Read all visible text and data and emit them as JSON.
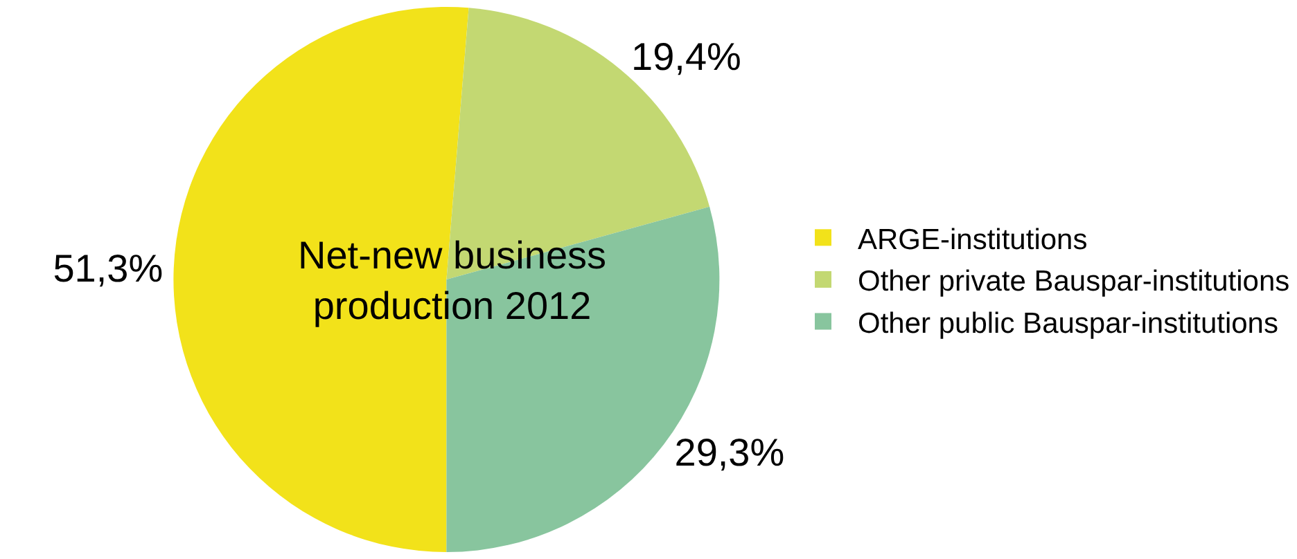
{
  "chart_data": {
    "type": "pie",
    "title": "Net-new business production 2012",
    "categories": [
      "ARGE-institutions",
      "Other private Bauspar-institutions",
      "Other public Bauspar-institutions"
    ],
    "values": [
      51.3,
      19.4,
      29.3
    ],
    "value_labels": [
      "51,3%",
      "19,4%",
      "29,3%"
    ],
    "colors": [
      "#f2e21a",
      "#c3d872",
      "#88c59e"
    ],
    "legend": "right"
  }
}
